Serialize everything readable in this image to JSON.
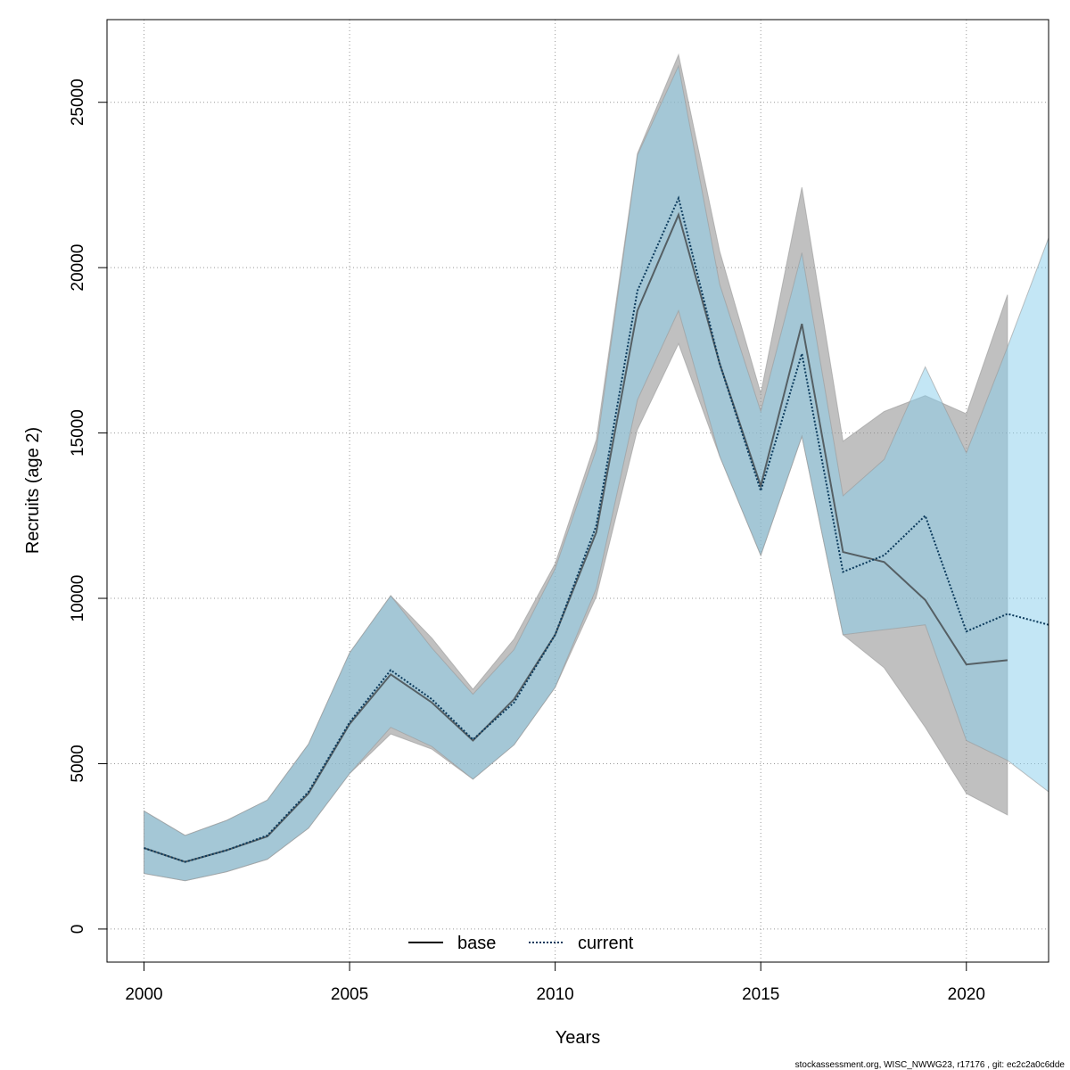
{
  "chart_data": {
    "type": "line",
    "xlabel": "Years",
    "ylabel": "Recruits (age 2)",
    "xlim": [
      1999.1,
      2022
    ],
    "ylim": [
      -1000,
      27500
    ],
    "x_ticks": [
      2000,
      2005,
      2010,
      2015,
      2020
    ],
    "y_ticks": [
      0,
      5000,
      10000,
      15000,
      20000,
      25000
    ],
    "grid": true,
    "legend_position": "bottom",
    "series": [
      {
        "name": "base",
        "line_style": "solid",
        "line_color": "#000000",
        "band_color": "#8c8c8c",
        "x": [
          2000,
          2001,
          2002,
          2003,
          2004,
          2005,
          2006,
          2007,
          2008,
          2009,
          2010,
          2011,
          2012,
          2013,
          2014,
          2015,
          2016,
          2017,
          2018,
          2019,
          2020,
          2021
        ],
        "values": [
          2450,
          2030,
          2380,
          2800,
          4100,
          6200,
          7700,
          6850,
          5700,
          6950,
          8900,
          12000,
          18700,
          21600,
          17100,
          13400,
          18300,
          11400,
          11100,
          9950,
          8000,
          8130
        ],
        "lower": [
          1680,
          1460,
          1730,
          2110,
          3050,
          4700,
          5900,
          5440,
          4530,
          5570,
          7310,
          10050,
          15100,
          17700,
          14300,
          11300,
          14900,
          8900,
          7900,
          6100,
          4100,
          3450
        ],
        "upper": [
          3570,
          2830,
          3280,
          3900,
          5590,
          8350,
          10080,
          8800,
          7250,
          8770,
          11050,
          14800,
          23450,
          26440,
          20500,
          16200,
          22430,
          14750,
          15650,
          16130,
          15580,
          19180
        ]
      },
      {
        "name": "current",
        "line_style": "dotted",
        "line_color": "#0b3a5c",
        "band_color": "#87ceeb",
        "x": [
          2000,
          2001,
          2002,
          2003,
          2004,
          2005,
          2006,
          2007,
          2008,
          2009,
          2010,
          2011,
          2012,
          2013,
          2014,
          2015,
          2016,
          2017,
          2018,
          2019,
          2020,
          2021,
          2022
        ],
        "values": [
          2450,
          2030,
          2380,
          2830,
          4150,
          6250,
          7830,
          6950,
          5730,
          6850,
          8900,
          12200,
          19300,
          22100,
          17100,
          13250,
          17400,
          10800,
          11300,
          12500,
          9000,
          9530,
          9200
        ],
        "lower": [
          1680,
          1460,
          1730,
          2110,
          3050,
          4700,
          6100,
          5520,
          4530,
          5570,
          7310,
          10300,
          16000,
          18700,
          14300,
          11300,
          14900,
          8900,
          9050,
          9200,
          5700,
          5100,
          4150
        ],
        "upper": [
          3570,
          2830,
          3280,
          3900,
          5590,
          8350,
          10080,
          8500,
          7100,
          8450,
          10900,
          14500,
          23400,
          26100,
          19500,
          15650,
          20450,
          13100,
          14200,
          17000,
          14400,
          17600,
          20900
        ]
      }
    ],
    "footnote": "stockassessment.org, WISC_NWWG23, r17176 , git: ec2c2a0c6dde"
  }
}
